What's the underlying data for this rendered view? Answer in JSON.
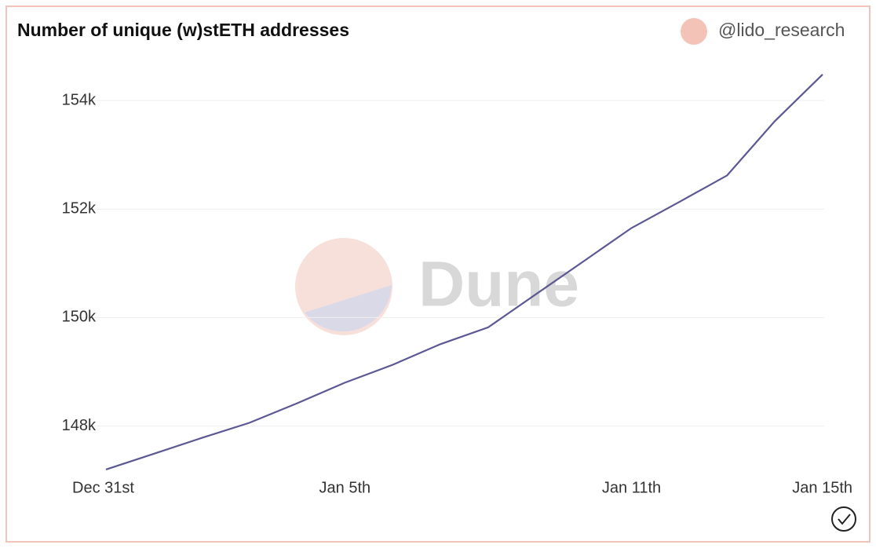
{
  "chart_data": {
    "type": "line",
    "title": "Number of unique (w)stETH addresses",
    "source": "@lido_research",
    "source_color": "#f4c3b8",
    "watermark": "Dune",
    "categories": [
      "Dec 31st",
      null,
      null,
      null,
      null,
      "Jan 5th",
      null,
      null,
      null,
      null,
      null,
      "Jan 11th",
      null,
      null,
      null,
      "Jan 15th"
    ],
    "series": [
      {
        "name": "@lido_research",
        "color": "#5c5894",
        "values": [
          147200,
          147490,
          147780,
          148060,
          148420,
          148800,
          149130,
          149510,
          149820,
          150430,
          151040,
          151650,
          152130,
          152620,
          153620,
          154480
        ]
      }
    ],
    "ylim": [
      147170,
      154550
    ],
    "yticks": [
      {
        "value": 148000,
        "label": "148k"
      },
      {
        "value": 150000,
        "label": "150k"
      },
      {
        "value": 152000,
        "label": "152k"
      },
      {
        "value": 154000,
        "label": "154k"
      }
    ],
    "grid": true
  }
}
